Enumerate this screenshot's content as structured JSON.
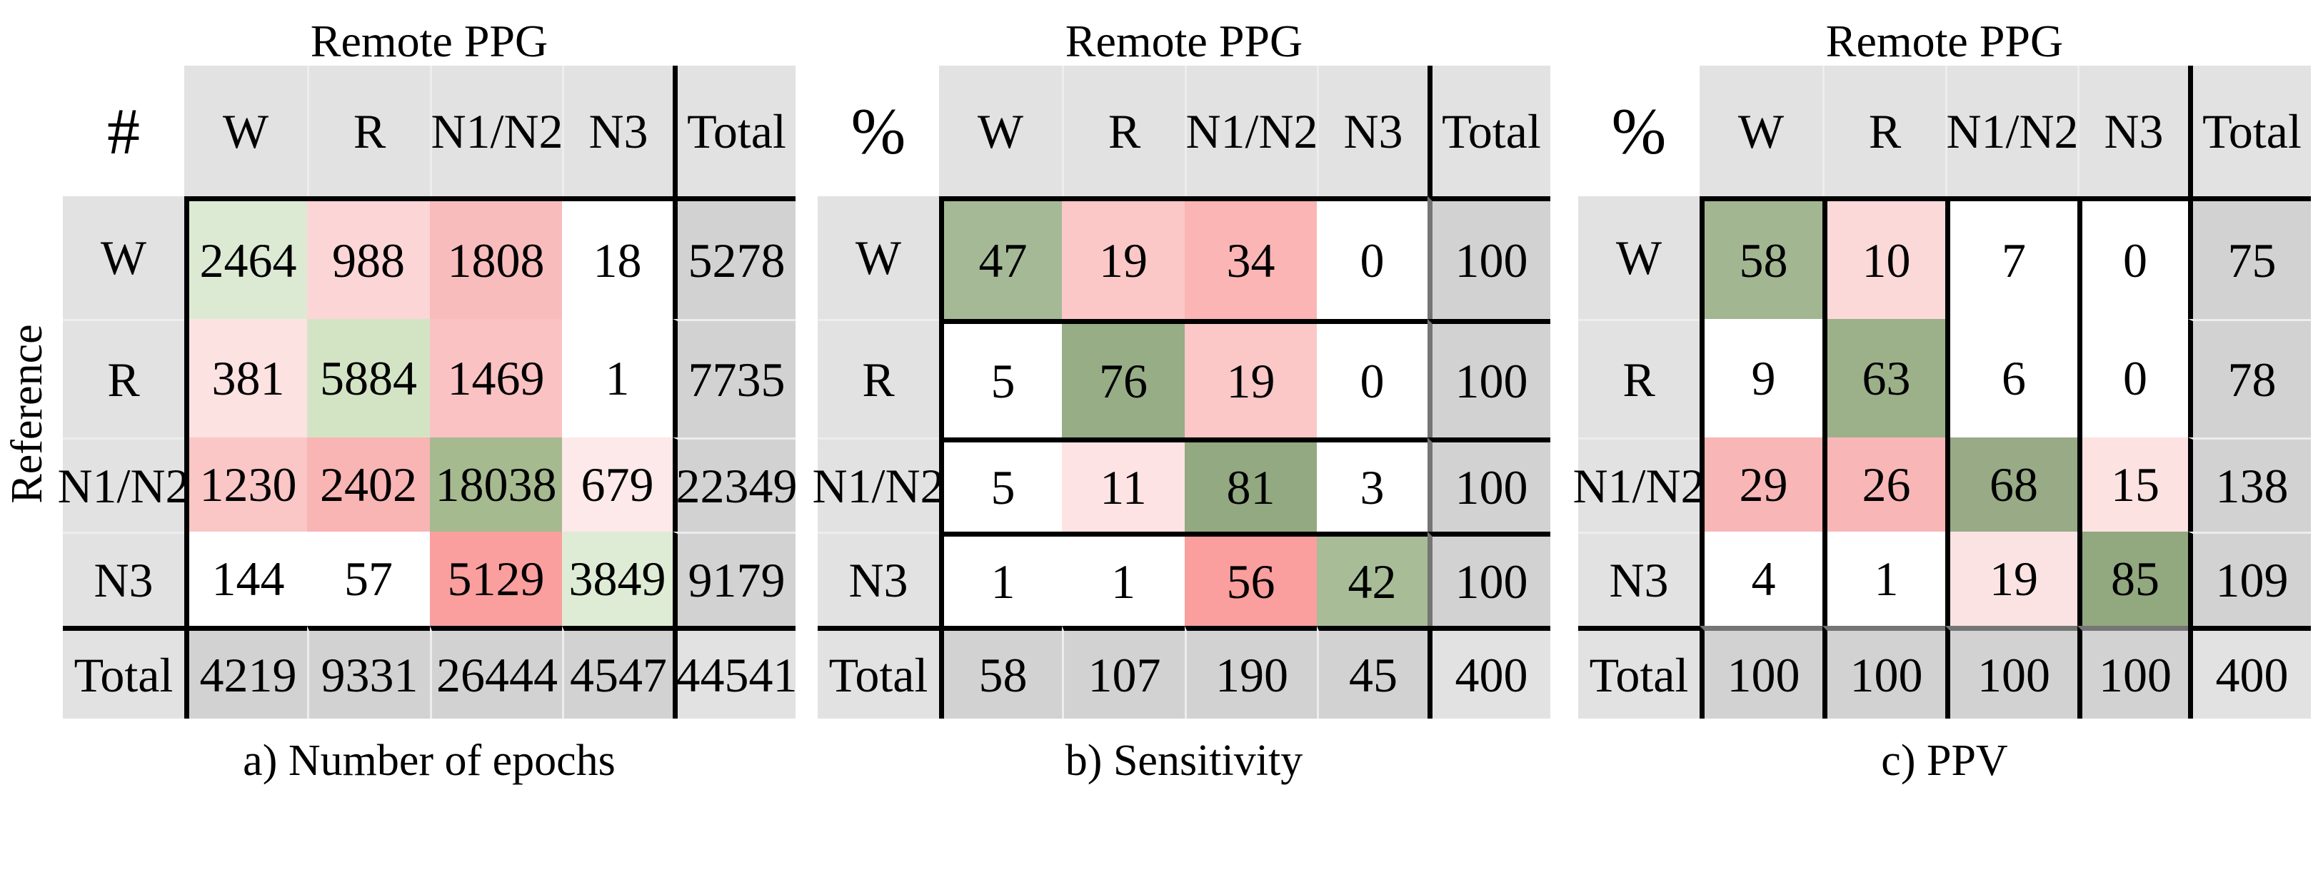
{
  "figure": {
    "reference_label": "Reference",
    "colors": {
      "background": "#ffffff",
      "text": "#000000",
      "header_bg": "#e2e2e2",
      "label_bg": "#e2e2e2",
      "total_bg": "#d2d2d2",
      "grand_total_bg": "#e2e2e2",
      "border_black": "#000000",
      "divider_gray": "#757575",
      "separator": "#ededed"
    }
  },
  "chart_data": [
    {
      "type": "heatmap",
      "title": "Remote PPG",
      "corner_symbol": "#",
      "caption": "a) Number of epochs",
      "row_axis_label": "Reference",
      "total_label": "Total",
      "columns": [
        "W",
        "R",
        "N1/N2",
        "N3"
      ],
      "rows": [
        "W",
        "R",
        "N1/N2",
        "N3"
      ],
      "values": [
        [
          2464,
          988,
          1808,
          18
        ],
        [
          381,
          5884,
          1469,
          1
        ],
        [
          1230,
          2402,
          18038,
          679
        ],
        [
          144,
          57,
          5129,
          3849
        ]
      ],
      "row_totals": [
        5278,
        7735,
        22349,
        9179
      ],
      "col_totals": [
        4219,
        9331,
        26444,
        4547
      ],
      "grand_total": 44541,
      "border_style": "block",
      "cell_colors": [
        [
          "#dcead3",
          "#fcd6d6",
          "#f9bcbc",
          "#ffffff"
        ],
        [
          "#fde2e2",
          "#d3e4c5",
          "#fac2c2",
          "#ffffff"
        ],
        [
          "#fac6c6",
          "#f9b4b4",
          "#a6ba90",
          "#fde9e9"
        ],
        [
          "#ffffff",
          "#ffffff",
          "#fa9e9e",
          "#dfecd5"
        ]
      ]
    },
    {
      "type": "heatmap",
      "title": "Remote PPG",
      "corner_symbol": "%",
      "caption": "b) Sensitivity",
      "total_label": "Total",
      "columns": [
        "W",
        "R",
        "N1/N2",
        "N3"
      ],
      "rows": [
        "W",
        "R",
        "N1/N2",
        "N3"
      ],
      "values": [
        [
          47,
          19,
          34,
          0
        ],
        [
          5,
          76,
          19,
          0
        ],
        [
          5,
          11,
          81,
          3
        ],
        [
          1,
          1,
          56,
          42
        ]
      ],
      "row_totals": [
        100,
        100,
        100,
        100
      ],
      "col_totals": [
        58,
        107,
        190,
        45
      ],
      "grand_total": 400,
      "border_style": "rows",
      "cell_colors": [
        [
          "#a5b996",
          "#fbc7c7",
          "#fbb5b5",
          "#ffffff"
        ],
        [
          "#ffffff",
          "#97ad85",
          "#fbc7c7",
          "#ffffff"
        ],
        [
          "#ffffff",
          "#fde3e3",
          "#93a981",
          "#ffffff"
        ],
        [
          "#ffffff",
          "#ffffff",
          "#fa9e9e",
          "#a8bd97"
        ]
      ]
    },
    {
      "type": "heatmap",
      "title": "Remote PPG",
      "corner_symbol": "%",
      "caption": "c) PPV",
      "total_label": "Total",
      "columns": [
        "W",
        "R",
        "N1/N2",
        "N3"
      ],
      "rows": [
        "W",
        "R",
        "N1/N2",
        "N3"
      ],
      "values": [
        [
          58,
          10,
          7,
          0
        ],
        [
          9,
          63,
          6,
          0
        ],
        [
          29,
          26,
          68,
          15
        ],
        [
          4,
          1,
          19,
          85
        ]
      ],
      "row_totals": [
        75,
        78,
        138,
        109
      ],
      "col_totals": [
        100,
        100,
        100,
        100
      ],
      "grand_total": 400,
      "border_style": "columns",
      "cell_colors": [
        [
          "#a2b692",
          "#fcd9d9",
          "#ffffff",
          "#ffffff"
        ],
        [
          "#ffffff",
          "#9cb18a",
          "#ffffff",
          "#ffffff"
        ],
        [
          "#f9b6b6",
          "#f9b6b6",
          "#98aa86",
          "#fde2e2"
        ],
        [
          "#ffffff",
          "#ffffff",
          "#fce3e3",
          "#92a87f"
        ]
      ]
    }
  ]
}
